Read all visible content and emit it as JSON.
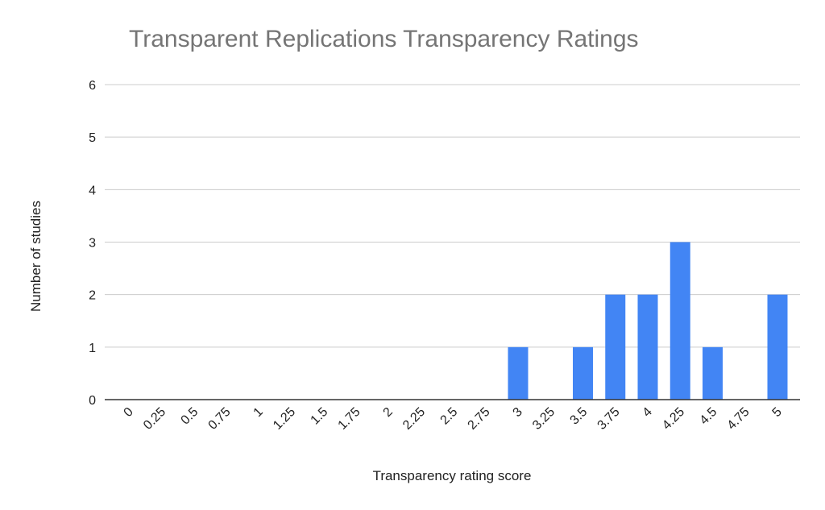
{
  "chart_data": {
    "type": "bar",
    "title": "Transparent Replications Transparency Ratings",
    "xlabel": "Transparency rating score",
    "ylabel": "Number of studies",
    "categories": [
      "0",
      "0.25",
      "0.5",
      "0.75",
      "1",
      "1.25",
      "1.5",
      "1.75",
      "2",
      "2.25",
      "2.5",
      "2.75",
      "3",
      "3.25",
      "3.5",
      "3.75",
      "4",
      "4.25",
      "4.5",
      "4.75",
      "5"
    ],
    "values": [
      0,
      0,
      0,
      0,
      0,
      0,
      0,
      0,
      0,
      0,
      0,
      0,
      1,
      0,
      1,
      2,
      2,
      3,
      1,
      0,
      2
    ],
    "ylim": [
      0,
      6
    ],
    "yticks": [
      "0",
      "1",
      "2",
      "3",
      "4",
      "5",
      "6"
    ],
    "grid": true,
    "legend": "none",
    "colors": {
      "bar": "#4285f4",
      "grid": "#cccccc",
      "axis": "#333333",
      "title": "#757575"
    }
  }
}
